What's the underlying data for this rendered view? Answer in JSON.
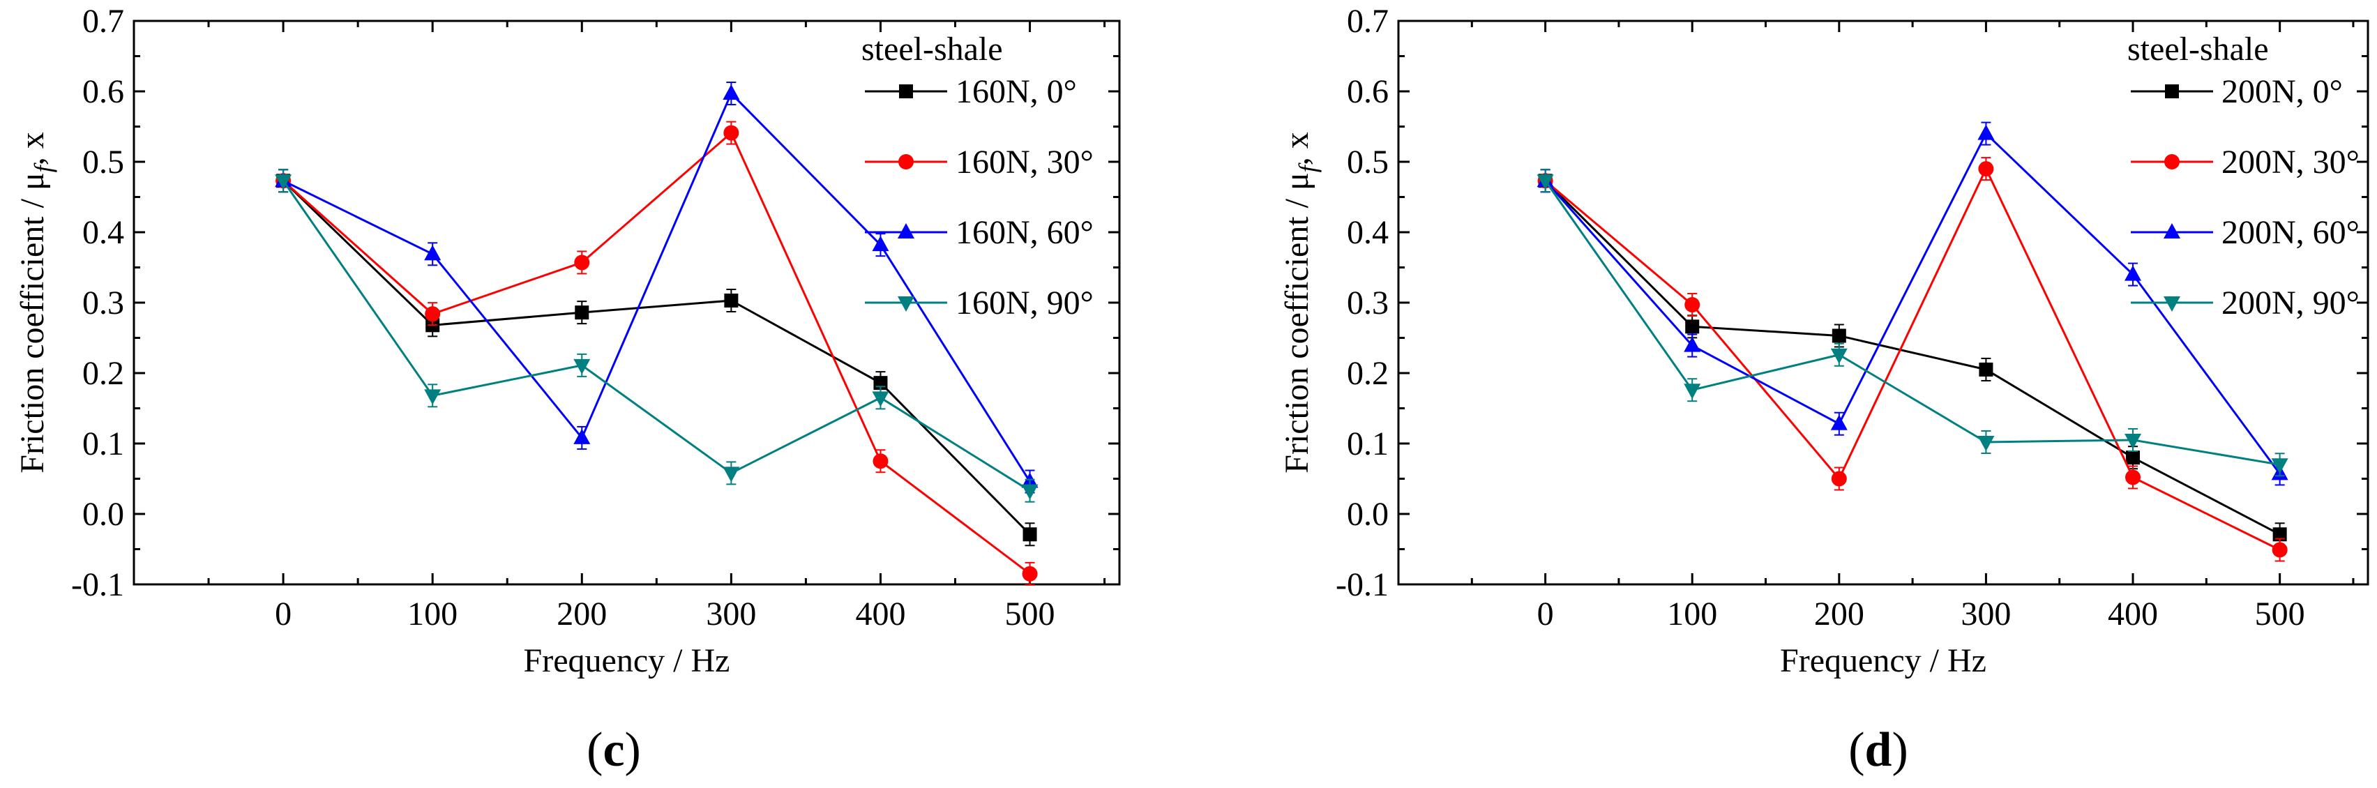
{
  "chart_data": [
    {
      "panel_label_parts": [
        "(",
        "c",
        ")"
      ],
      "type": "line",
      "xlabel": "Frequency / Hz",
      "ylabel_parts": [
        "Friction coefficient / μ",
        "f",
        ", x"
      ],
      "legend_title": "steel-shale",
      "legend_position": "top-right",
      "xlim": [
        -100,
        560
      ],
      "ylim": [
        -0.1,
        0.7
      ],
      "xticks": [
        "0",
        "100",
        "200",
        "300",
        "400",
        "500"
      ],
      "yticks": [
        "-0.1",
        "0.0",
        "0.1",
        "0.2",
        "0.3",
        "0.4",
        "0.5",
        "0.6",
        "0.7"
      ],
      "x": [
        0,
        100,
        200,
        300,
        400,
        500
      ],
      "series": [
        {
          "name": "160N, 0°",
          "color": "#000000",
          "marker": "square",
          "values": [
            0.473,
            0.268,
            0.286,
            0.303,
            0.186,
            -0.029
          ]
        },
        {
          "name": "160N, 30°",
          "color": "#ff0000",
          "marker": "circle",
          "values": [
            0.473,
            0.284,
            0.357,
            0.541,
            0.075,
            -0.085
          ]
        },
        {
          "name": "160N, 60°",
          "color": "#0000ff",
          "marker": "triangle-up",
          "values": [
            0.473,
            0.369,
            0.108,
            0.597,
            0.382,
            0.046
          ]
        },
        {
          "name": "160N, 90°",
          "color": "#008080",
          "marker": "triangle-down",
          "values": [
            0.473,
            0.168,
            0.211,
            0.058,
            0.165,
            0.033
          ]
        }
      ]
    },
    {
      "panel_label_parts": [
        "(",
        "d",
        ")"
      ],
      "type": "line",
      "xlabel": "Frequency / Hz",
      "ylabel_parts": [
        "Friction coefficient / μ",
        "f",
        ", x"
      ],
      "legend_title": "steel-shale",
      "legend_position": "top-right",
      "xlim": [
        -100,
        560
      ],
      "ylim": [
        -0.1,
        0.7
      ],
      "xticks": [
        "0",
        "100",
        "200",
        "300",
        "400",
        "500"
      ],
      "yticks": [
        "-0.1",
        "0.0",
        "0.1",
        "0.2",
        "0.3",
        "0.4",
        "0.5",
        "0.6",
        "0.7"
      ],
      "x": [
        0,
        100,
        200,
        300,
        400,
        500
      ],
      "series": [
        {
          "name": "200N, 0°",
          "color": "#000000",
          "marker": "square",
          "values": [
            0.473,
            0.266,
            0.253,
            0.205,
            0.08,
            -0.029
          ]
        },
        {
          "name": "200N, 30°",
          "color": "#ff0000",
          "marker": "circle",
          "values": [
            0.473,
            0.297,
            0.05,
            0.49,
            0.052,
            -0.051
          ]
        },
        {
          "name": "200N, 60°",
          "color": "#0000ff",
          "marker": "triangle-up",
          "values": [
            0.473,
            0.239,
            0.128,
            0.54,
            0.34,
            0.057
          ]
        },
        {
          "name": "200N, 90°",
          "color": "#008080",
          "marker": "triangle-down",
          "values": [
            0.473,
            0.176,
            0.226,
            0.102,
            0.105,
            0.07
          ]
        }
      ]
    }
  ]
}
